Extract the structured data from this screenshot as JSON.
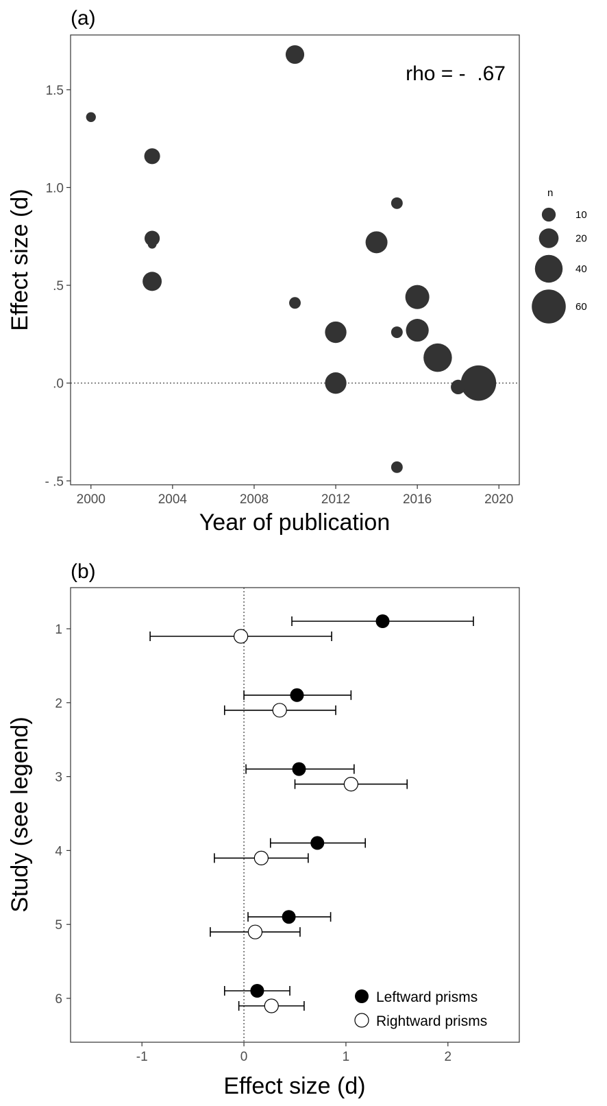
{
  "chart_data": [
    {
      "type": "scatter",
      "panel_label": "(a)",
      "xlabel": "Year of publication",
      "ylabel": "Effect size (d)",
      "xlim": [
        1999,
        2021
      ],
      "ylim": [
        -0.52,
        1.78
      ],
      "xticks": [
        2000,
        2004,
        2008,
        2012,
        2016,
        2020
      ],
      "xtick_labels": [
        "2000",
        "2004",
        "2008",
        "2012",
        "2016",
        "2020"
      ],
      "yticks": [
        -0.5,
        0,
        0.5,
        1.0,
        1.5
      ],
      "ytick_labels": [
        "- .5",
        ".0",
        ".5",
        "1.0",
        "1.5"
      ],
      "reference_line": {
        "y": 0,
        "style": "dotted"
      },
      "annotation": "rho = -  .67",
      "size_legend": {
        "title": "n",
        "entries": [
          {
            "label": "10",
            "n": 10
          },
          {
            "label": "20",
            "n": 20
          },
          {
            "label": "40",
            "n": 40
          },
          {
            "label": "60",
            "n": 60
          }
        ]
      },
      "points": [
        {
          "x": 2000,
          "y": 1.36,
          "n": 5
        },
        {
          "x": 2003,
          "y": 1.16,
          "n": 13
        },
        {
          "x": 2003,
          "y": 0.74,
          "n": 12
        },
        {
          "x": 2003,
          "y": 0.71,
          "n": 4
        },
        {
          "x": 2003,
          "y": 0.52,
          "n": 19
        },
        {
          "x": 2010,
          "y": 1.68,
          "n": 18
        },
        {
          "x": 2010,
          "y": 0.41,
          "n": 7
        },
        {
          "x": 2012,
          "y": 0.26,
          "n": 24
        },
        {
          "x": 2012,
          "y": 0.0,
          "n": 24
        },
        {
          "x": 2014,
          "y": 0.72,
          "n": 25
        },
        {
          "x": 2015,
          "y": 0.92,
          "n": 7
        },
        {
          "x": 2015,
          "y": 0.26,
          "n": 7
        },
        {
          "x": 2015,
          "y": -0.43,
          "n": 7
        },
        {
          "x": 2016,
          "y": 0.44,
          "n": 30
        },
        {
          "x": 2016,
          "y": 0.27,
          "n": 27
        },
        {
          "x": 2017,
          "y": 0.13,
          "n": 42
        },
        {
          "x": 2018,
          "y": -0.02,
          "n": 11
        },
        {
          "x": 2019,
          "y": 0.0,
          "n": 65
        }
      ]
    },
    {
      "type": "forest",
      "panel_label": "(b)",
      "xlabel": "Effect size (d)",
      "ylabel": "Study (see legend)",
      "xlim": [
        -1.7,
        2.7
      ],
      "xticks": [
        -1,
        0,
        1,
        2
      ],
      "xtick_labels": [
        "-1",
        "0",
        "1",
        "2"
      ],
      "categories": [
        "1",
        "2",
        "3",
        "4",
        "5",
        "6"
      ],
      "reference_line": {
        "x": 0,
        "style": "dotted"
      },
      "legend": {
        "position": "bottom-right",
        "entries": [
          {
            "label": "Leftward prisms",
            "fill": "#000000"
          },
          {
            "label": "Rightward prisms",
            "fill": "none"
          }
        ]
      },
      "series": [
        {
          "name": "Leftward prisms",
          "fill": "#000000",
          "studies": [
            {
              "study": "1",
              "d": 1.36,
              "lower": 0.47,
              "upper": 2.25
            },
            {
              "study": "2",
              "d": 0.52,
              "lower": 0.0,
              "upper": 1.05
            },
            {
              "study": "3",
              "d": 0.54,
              "lower": 0.02,
              "upper": 1.08
            },
            {
              "study": "4",
              "d": 0.72,
              "lower": 0.26,
              "upper": 1.19
            },
            {
              "study": "5",
              "d": 0.44,
              "lower": 0.04,
              "upper": 0.85
            },
            {
              "study": "6",
              "d": 0.13,
              "lower": -0.19,
              "upper": 0.45
            }
          ]
        },
        {
          "name": "Rightward prisms",
          "fill": "none",
          "studies": [
            {
              "study": "1",
              "d": -0.03,
              "lower": -0.92,
              "upper": 0.86
            },
            {
              "study": "2",
              "d": 0.35,
              "lower": -0.19,
              "upper": 0.9
            },
            {
              "study": "3",
              "d": 1.05,
              "lower": 0.5,
              "upper": 1.6
            },
            {
              "study": "4",
              "d": 0.17,
              "lower": -0.29,
              "upper": 0.63
            },
            {
              "study": "5",
              "d": 0.11,
              "lower": -0.33,
              "upper": 0.55
            },
            {
              "study": "6",
              "d": 0.27,
              "lower": -0.05,
              "upper": 0.59
            }
          ]
        }
      ]
    }
  ]
}
